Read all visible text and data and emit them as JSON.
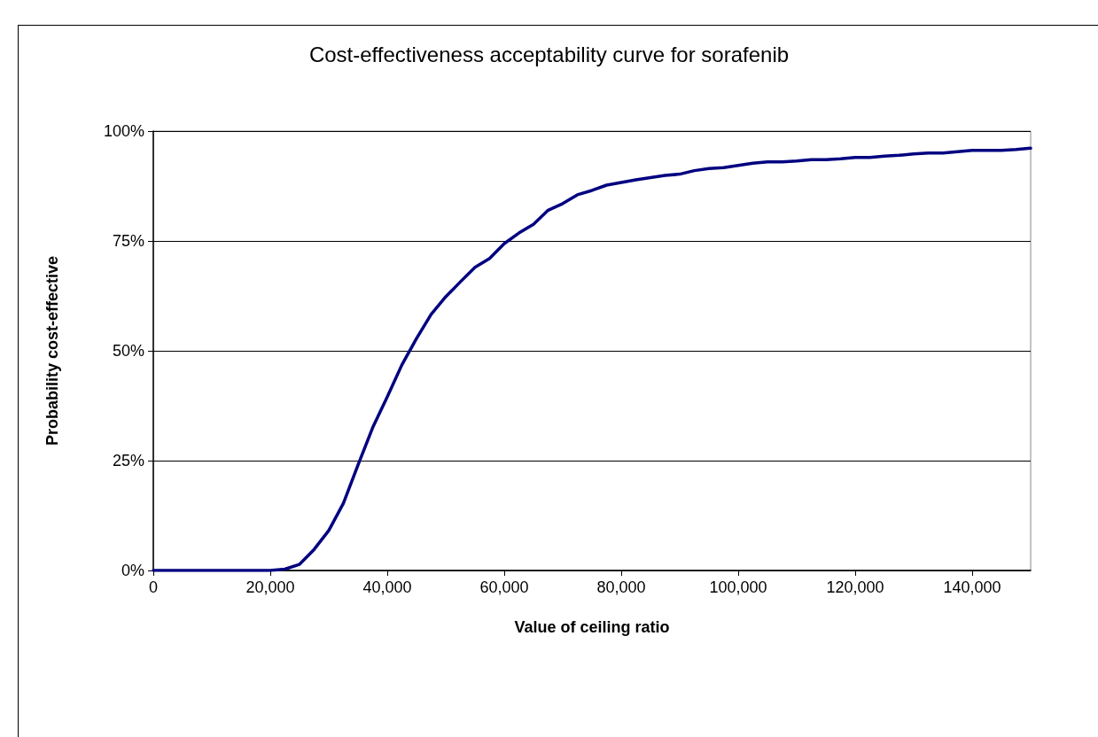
{
  "chart_data": {
    "type": "line",
    "title": "Cost-effectiveness acceptability curve for sorafenib",
    "xlabel": "Value of ceiling ratio",
    "ylabel": "Probability cost-effective",
    "x": [
      0,
      2500,
      5000,
      7500,
      10000,
      12500,
      15000,
      17500,
      20000,
      22500,
      25000,
      27500,
      30000,
      32500,
      35000,
      37500,
      40000,
      42500,
      45000,
      47500,
      50000,
      52500,
      55000,
      57500,
      60000,
      62500,
      65000,
      67500,
      70000,
      72500,
      75000,
      77500,
      80000,
      82500,
      85000,
      87500,
      90000,
      92500,
      95000,
      97500,
      100000,
      102500,
      105000,
      107500,
      110000,
      112500,
      115000,
      117500,
      120000,
      122500,
      125000,
      127500,
      130000,
      132500,
      135000,
      137500,
      140000,
      142500,
      145000,
      147500,
      150000
    ],
    "series": [
      {
        "color": "#000080",
        "values": [
          0,
          0,
          0,
          0,
          0,
          0,
          0,
          0,
          0,
          0.3,
          1.4,
          4.8,
          9.1,
          15.3,
          24,
          32.5,
          39.5,
          46.8,
          52.8,
          58.3,
          62.3,
          65.7,
          69,
          71,
          74.4,
          76.8,
          78.8,
          82,
          83.5,
          85.5,
          86.5,
          87.7,
          88.3,
          88.9,
          89.4,
          89.9,
          90.2,
          91,
          91.5,
          91.7,
          92.2,
          92.7,
          93,
          93,
          93.2,
          93.5,
          93.5,
          93.7,
          94,
          94,
          94.3,
          94.5,
          94.8,
          95,
          95,
          95.3,
          95.6,
          95.6,
          95.6,
          95.8,
          96.1
        ]
      }
    ],
    "xlim": [
      0,
      150000
    ],
    "xticks": [
      0,
      {
        "value": 20000,
        "label": "20,000"
      },
      {
        "value": 40000,
        "label": "40,000"
      },
      {
        "value": 60000,
        "label": "60,000"
      },
      {
        "value": 80000,
        "label": "80,000"
      },
      {
        "value": 100000,
        "label": "100,000"
      },
      {
        "value": 120000,
        "label": "120,000"
      },
      {
        "value": 140000,
        "label": "140,000"
      }
    ],
    "ylim": [
      0,
      100
    ],
    "yticks": [
      {
        "value": 0,
        "label": "0%"
      },
      {
        "value": 25,
        "label": "25%"
      },
      {
        "value": 50,
        "label": "50%"
      },
      {
        "value": 75,
        "label": "75%"
      },
      {
        "value": 100,
        "label": "100%"
      }
    ],
    "grid": "y",
    "marker": "none",
    "line_style": "solid"
  }
}
